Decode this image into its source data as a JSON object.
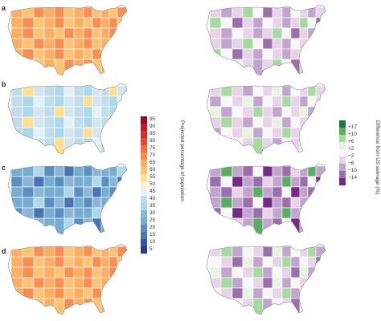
{
  "panels": [
    {
      "letter": "a",
      "left_scheme": "orange",
      "right_scheme": "diff_a"
    },
    {
      "letter": "b",
      "left_scheme": "lightblue",
      "right_scheme": "diff_b"
    },
    {
      "letter": "c",
      "left_scheme": "darkblue",
      "right_scheme": "diff_c"
    },
    {
      "letter": "d",
      "left_scheme": "orange",
      "right_scheme": "diff_d"
    }
  ],
  "left_colorbar": {
    "title": "Projected percentage of population",
    "ticks": [
      "95",
      "90",
      "85",
      "80",
      "75",
      "70",
      "65",
      "60",
      "55",
      "50",
      "45",
      "40",
      "35",
      "30",
      "25",
      "20",
      "15",
      "10",
      "5"
    ],
    "colors": [
      "#a50026",
      "#c11a2c",
      "#d73027",
      "#e54a2f",
      "#f46d43",
      "#f98e52",
      "#fdae61",
      "#fdc374",
      "#fee090",
      "#fff3c4",
      "#e0f3f8",
      "#c2dde9",
      "#abd9e9",
      "#8cb6d6",
      "#74add1",
      "#5a8fc2",
      "#4575b4",
      "#34589e",
      "#313695"
    ]
  },
  "right_colorbar": {
    "title": "Difference from US average (%)",
    "ticks": [
      "+17",
      "+10",
      "+6",
      "+2",
      "−2",
      "−6",
      "−10",
      "−14"
    ],
    "colors": [
      "#1b7837",
      "#5aae61",
      "#a6dba0",
      "#e7f5e0",
      "#f7f7f7",
      "#e7d4e8",
      "#c2a5cf",
      "#9970ab",
      "#762a83"
    ]
  }
}
